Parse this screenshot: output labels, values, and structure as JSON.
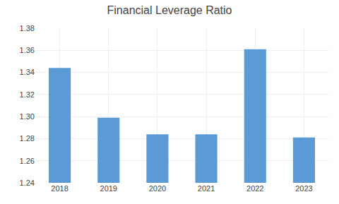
{
  "chart_data": {
    "type": "bar",
    "title": "Financial Leverage Ratio",
    "categories": [
      "2018",
      "2019",
      "2020",
      "2021",
      "2022",
      "2023"
    ],
    "values": [
      1.344,
      1.299,
      1.284,
      1.284,
      1.361,
      1.281
    ],
    "color": "#5B9BD5",
    "ylim": [
      1.24,
      1.38
    ],
    "yticks": [
      1.24,
      1.26,
      1.28,
      {
        "value": 1.3,
        "label": "1.30"
      },
      1.32,
      1.34,
      1.36,
      1.38
    ],
    "grid": true
  }
}
